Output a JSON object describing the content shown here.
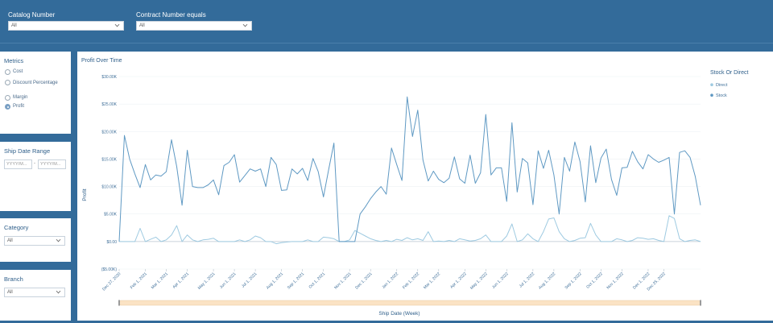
{
  "filters": {
    "catalog": {
      "label": "Catalog Number",
      "value": "All"
    },
    "contract": {
      "label": "Contract Number equals",
      "value": "All"
    }
  },
  "metrics": {
    "title": "Metrics",
    "options": [
      {
        "label": "Cost",
        "selected": false
      },
      {
        "label": "Discount Percentage",
        "selected": false
      },
      {
        "label": "Margin",
        "selected": false
      },
      {
        "label": "Profit",
        "selected": true
      }
    ]
  },
  "ship_date_range": {
    "title": "Ship Date Range",
    "start_placeholder": "YYYY/M...",
    "sep": "-",
    "end_placeholder": "YYYY/M..."
  },
  "category": {
    "title": "Category",
    "value": "All"
  },
  "branch": {
    "title": "Branch",
    "value": "All"
  },
  "chart_data": {
    "type": "line",
    "title": "Profit Over Time",
    "xlabel": "Ship Date (Week)",
    "ylabel": "Profit",
    "ylim": [
      -5000,
      30000
    ],
    "y_ticks": [
      -5000,
      0,
      5000,
      10000,
      15000,
      20000,
      25000,
      30000
    ],
    "y_tick_labels": [
      "($5.00K)",
      "$0.00",
      "$5.00K",
      "$10.00K",
      "$15.00K",
      "$20.00K",
      "$25.00K",
      "$30.00K"
    ],
    "x_tick_labels": [
      "Dec 27, 2020",
      "Feb 1, 2021",
      "Mar 1, 2021",
      "Apr 1, 2021",
      "May 1, 2021",
      "Jun 1, 2021",
      "Jul 1, 2021",
      "Aug 1, 2021",
      "Sep 1, 2021",
      "Oct 1, 2021",
      "Nov 1, 2021",
      "Dec 1, 2021",
      "Jan 1, 2022",
      "Feb 1, 2022",
      "Mar 1, 2022",
      "Apr 1, 2022",
      "May 1, 2022",
      "Jun 1, 2022",
      "Jul 1, 2022",
      "Aug 1, 2022",
      "Sep 1, 2022",
      "Oct 1, 2022",
      "Nov 1, 2022",
      "Dec 1, 2022",
      "Dec 25, 2022"
    ],
    "x_tick_weeks": [
      0,
      5,
      9,
      13,
      18,
      22,
      26,
      31,
      35,
      39,
      44,
      48,
      53,
      57,
      61,
      66,
      70,
      74,
      79,
      83,
      88,
      92,
      96,
      101,
      104
    ],
    "legend": {
      "title": "Stock Or Direct",
      "position": "right"
    },
    "series": [
      {
        "name": "Stock",
        "color": "#5f99c3",
        "values": [
          0,
          19300,
          15000,
          12300,
          9800,
          14000,
          11200,
          12100,
          11900,
          12700,
          18500,
          13600,
          6600,
          16600,
          10000,
          9800,
          9800,
          10300,
          11200,
          8500,
          13800,
          14400,
          15800,
          10800,
          12000,
          13200,
          12800,
          13200,
          10000,
          15300,
          14000,
          9300,
          9400,
          13200,
          12300,
          13300,
          11100,
          15100,
          12700,
          8100,
          13100,
          17900,
          0,
          0,
          0,
          0,
          5000,
          6300,
          7800,
          9000,
          10000,
          8600,
          17000,
          14000,
          11100,
          26300,
          19100,
          23900,
          14800,
          11000,
          12800,
          11300,
          10700,
          11500,
          15400,
          11400,
          10600,
          15700,
          10600,
          12500,
          23100,
          12100,
          13400,
          13400,
          7300,
          21600,
          9000,
          15100,
          14300,
          6700,
          16500,
          13300,
          16600,
          12100,
          5000,
          15300,
          12800,
          18100,
          14500,
          7200,
          17400,
          10700,
          15200,
          16800,
          11300,
          8400,
          13400,
          13500,
          16400,
          14500,
          13200,
          15800,
          15000,
          14400,
          14800,
          15300,
          5000,
          16200,
          16500,
          15300,
          11800,
          6600
        ]
      },
      {
        "name": "Direct",
        "color": "#9ecae1",
        "values": [
          0,
          0,
          0,
          0,
          2400,
          0,
          400,
          800,
          0,
          300,
          1200,
          2900,
          0,
          1200,
          300,
          0,
          300,
          400,
          600,
          0,
          0,
          0,
          0,
          300,
          0,
          300,
          1000,
          700,
          0,
          0,
          -400,
          -200,
          -100,
          0,
          0,
          0,
          300,
          0,
          0,
          800,
          700,
          500,
          0,
          0,
          300,
          2000,
          1500,
          1000,
          500,
          200,
          0,
          200,
          0,
          400,
          200,
          700,
          300,
          500,
          200,
          1800,
          0,
          100,
          0,
          200,
          0,
          500,
          300,
          100,
          200,
          500,
          1200,
          0,
          0,
          0,
          1000,
          3200,
          0,
          300,
          1400,
          500,
          0,
          1800,
          4100,
          4300,
          1800,
          500,
          0,
          200,
          600,
          700,
          3300,
          1200,
          0,
          0,
          0,
          500,
          300,
          0,
          200,
          700,
          600,
          400,
          500,
          200,
          0,
          4700,
          4200,
          500,
          0,
          200,
          300,
          0
        ]
      }
    ]
  }
}
